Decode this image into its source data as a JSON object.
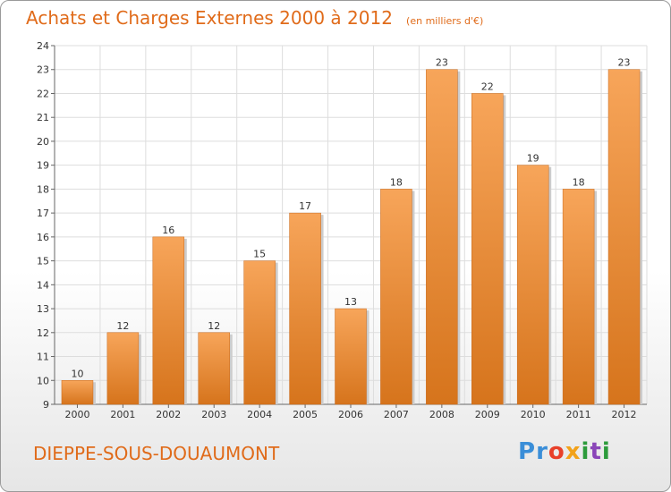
{
  "header": {
    "title": "Achats et Charges Externes 2000 à 2012",
    "unit": "(en milliers d'€)"
  },
  "footer": {
    "town": "DIEPPE-SOUS-DOUAUMONT",
    "logo_letters": [
      "P",
      "r",
      "o",
      "x",
      "i",
      "t",
      "i"
    ]
  },
  "colors": {
    "accent": "#e06b1a",
    "bar_light": "#f7a55a",
    "bar_dark": "#d6741c",
    "logo": [
      "#3a8ed8",
      "#3a8ed8",
      "#e8402a",
      "#f2a21a",
      "#2d9b3c",
      "#8a46b8",
      "#2d9b3c"
    ]
  },
  "chart_data": {
    "type": "bar",
    "title": "Achats et Charges Externes 2000 à 2012",
    "subtitle": "(en milliers d'€)",
    "categories": [
      "2000",
      "2001",
      "2002",
      "2003",
      "2004",
      "2005",
      "2006",
      "2007",
      "2008",
      "2009",
      "2010",
      "2011",
      "2012"
    ],
    "values": [
      10,
      12,
      16,
      12,
      15,
      17,
      13,
      18,
      23,
      22,
      19,
      18,
      23
    ],
    "ylim": [
      9,
      24
    ],
    "yticks": [
      9,
      10,
      11,
      12,
      13,
      14,
      15,
      16,
      17,
      18,
      19,
      20,
      21,
      22,
      23,
      24
    ],
    "grid": true,
    "legend": "none",
    "data_labels": true
  }
}
